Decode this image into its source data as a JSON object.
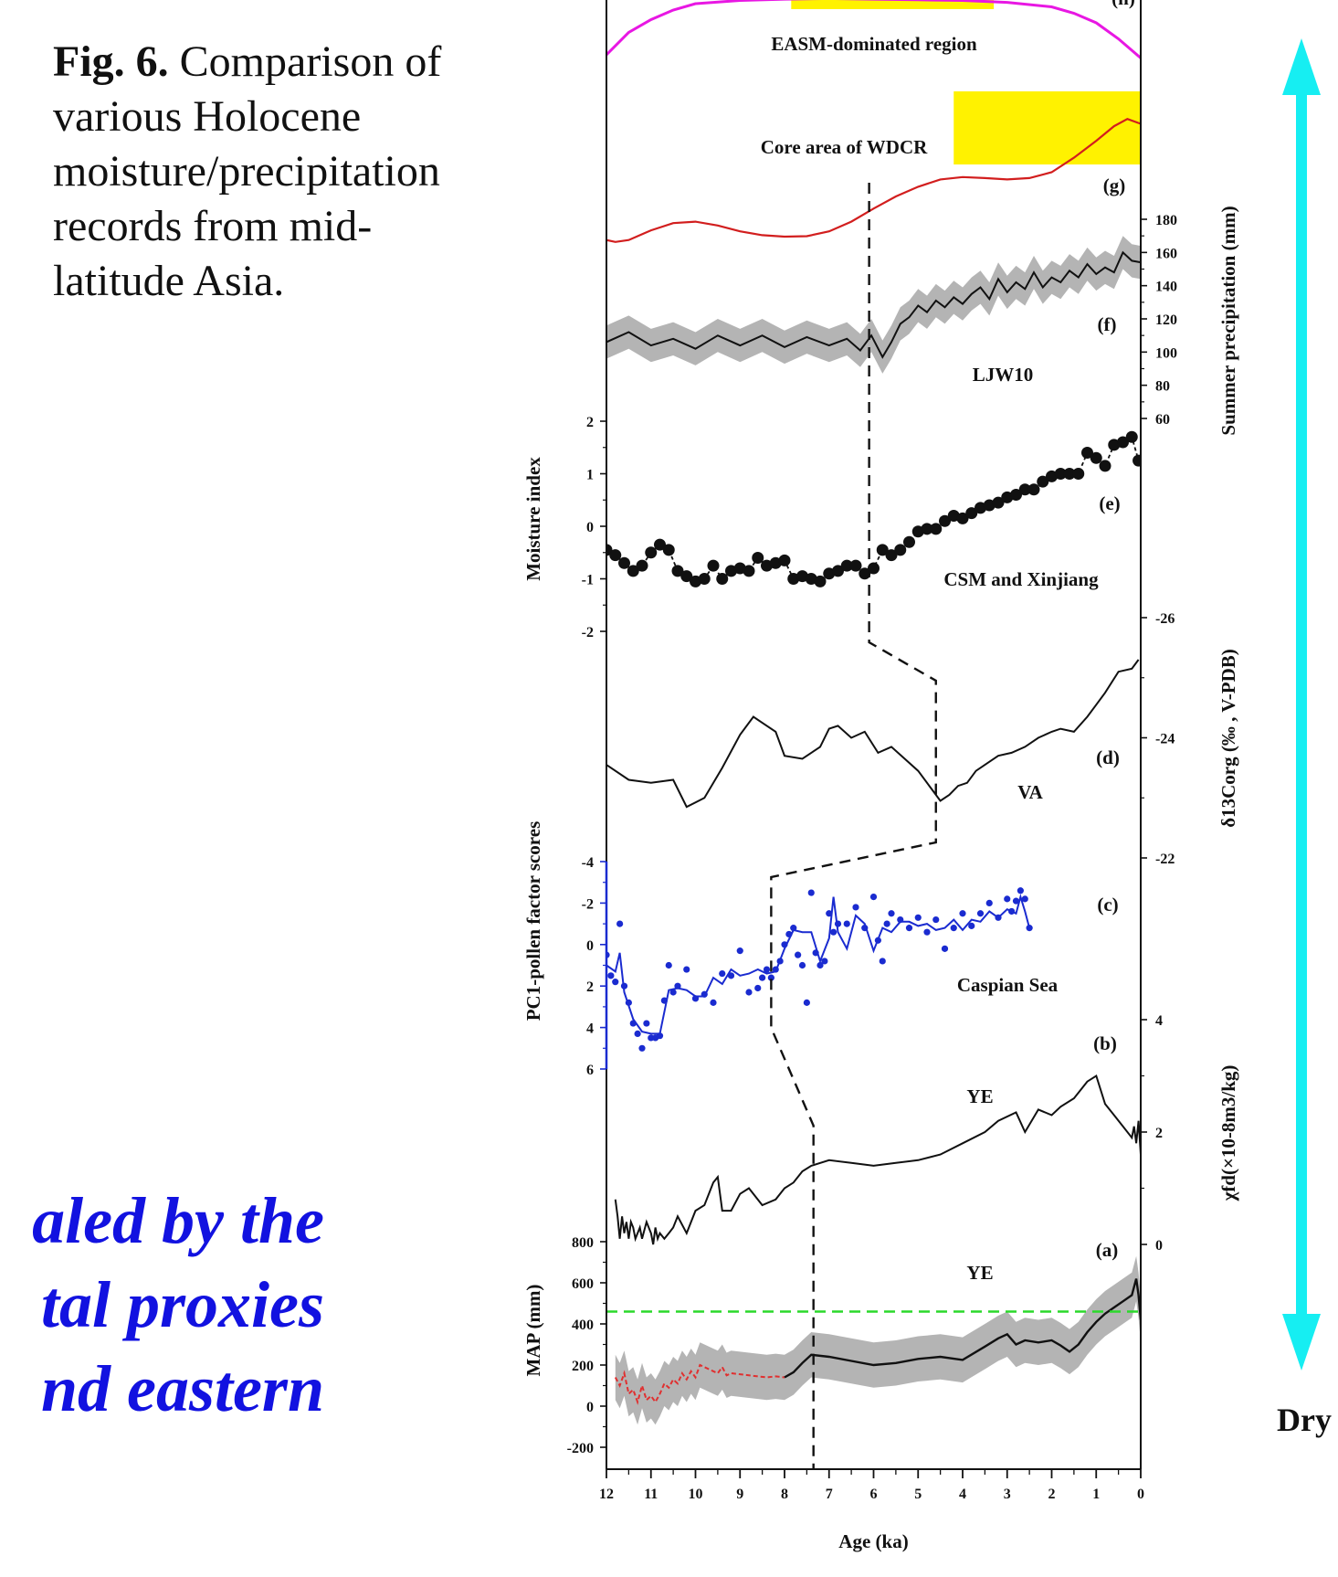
{
  "caption": {
    "bold": "Fig. 6.",
    "text": " Comparison of various Holocene moisture/precipitation records from mid-latitude Asia."
  },
  "side_text": [
    "aled by the",
    "tal proxies",
    "nd eastern"
  ],
  "side_label_dry": "Dry",
  "colors": {
    "accent_arrow": "#16eef2",
    "easm": "#e817e3",
    "wdcr": "#d21e1e",
    "caspian": "#1a2bd0",
    "yellow_box": "#fff200",
    "threshold_green": "#2bd92b",
    "red_dashed": "#e03030",
    "shade": "#b4b4b4"
  },
  "chart_data": [
    {
      "panel": "(h)",
      "type": "line",
      "label": "EASM-dominated region",
      "color": "#e817e3",
      "x": [
        12,
        11.5,
        11,
        10.5,
        10,
        9,
        8,
        7,
        6,
        5,
        4,
        3,
        2,
        1.5,
        1,
        0.5,
        0
      ],
      "y": [
        0.2,
        0.55,
        0.75,
        0.9,
        1.0,
        1.05,
        1.07,
        1.08,
        1.07,
        1.06,
        1.05,
        1.02,
        0.95,
        0.85,
        0.7,
        0.45,
        0.15
      ]
    },
    {
      "panel": "(g)",
      "type": "line",
      "label": "Core area of WDCR",
      "color": "#d21e1e",
      "x": [
        12,
        11.8,
        11.5,
        11,
        10.5,
        10,
        9.5,
        9,
        8.5,
        8,
        7.5,
        7,
        6.5,
        6,
        5.5,
        5,
        4.5,
        4,
        3.5,
        3,
        2.5,
        2,
        1.5,
        1,
        0.6,
        0.3,
        0
      ],
      "y": [
        0.1,
        0.06,
        0.1,
        0.3,
        0.45,
        0.48,
        0.4,
        0.28,
        0.2,
        0.17,
        0.18,
        0.28,
        0.48,
        0.75,
        1.0,
        1.2,
        1.35,
        1.4,
        1.38,
        1.35,
        1.38,
        1.5,
        1.8,
        2.15,
        2.45,
        2.6,
        2.5
      ]
    },
    {
      "panel": "(f)",
      "type": "area",
      "label": "LJW10",
      "ylabel": "Summer precipitation (mm)",
      "yticks": [
        60,
        80,
        100,
        120,
        140,
        160,
        180
      ],
      "x": [
        12,
        11.5,
        11,
        10.5,
        10,
        9.5,
        9,
        8.5,
        8,
        7.5,
        7,
        6.6,
        6.3,
        6.05,
        5.8,
        5.6,
        5.4,
        5.2,
        5,
        4.8,
        4.6,
        4.4,
        4.2,
        4,
        3.8,
        3.6,
        3.4,
        3.2,
        3,
        2.8,
        2.6,
        2.4,
        2.2,
        2,
        1.8,
        1.6,
        1.4,
        1.2,
        1,
        0.8,
        0.6,
        0.4,
        0.2,
        0
      ],
      "y": [
        106,
        112,
        104,
        108,
        102,
        110,
        104,
        110,
        103,
        109,
        104,
        108,
        101,
        110,
        97,
        106,
        117,
        121,
        128,
        124,
        131,
        127,
        133,
        129,
        135,
        139,
        132,
        144,
        136,
        142,
        138,
        148,
        139,
        145,
        142,
        149,
        145,
        153,
        147,
        151,
        148,
        160,
        155,
        154
      ],
      "band": 10
    },
    {
      "panel": "(e)",
      "type": "scatter",
      "label": "CSM and Xinjiang",
      "ylabel": "Moisture index",
      "yticks": [
        -2,
        -1,
        0,
        1,
        2
      ],
      "x": [
        12,
        11.8,
        11.6,
        11.4,
        11.2,
        11.0,
        10.8,
        10.6,
        10.4,
        10.2,
        10.0,
        9.8,
        9.6,
        9.4,
        9.2,
        9.0,
        8.8,
        8.6,
        8.4,
        8.2,
        8.0,
        7.8,
        7.6,
        7.4,
        7.2,
        7.0,
        6.8,
        6.6,
        6.4,
        6.2,
        6.0,
        5.8,
        5.6,
        5.4,
        5.2,
        5.0,
        4.8,
        4.6,
        4.4,
        4.2,
        4.0,
        3.8,
        3.6,
        3.4,
        3.2,
        3.0,
        2.8,
        2.6,
        2.4,
        2.2,
        2.0,
        1.8,
        1.6,
        1.4,
        1.2,
        1.0,
        0.8,
        0.6,
        0.4,
        0.2,
        0.05
      ],
      "y": [
        -0.45,
        -0.55,
        -0.7,
        -0.85,
        -0.75,
        -0.5,
        -0.35,
        -0.45,
        -0.85,
        -0.95,
        -1.05,
        -1.0,
        -0.75,
        -1.0,
        -0.85,
        -0.8,
        -0.85,
        -0.6,
        -0.75,
        -0.7,
        -0.65,
        -1.0,
        -0.95,
        -1.0,
        -1.05,
        -0.9,
        -0.85,
        -0.75,
        -0.75,
        -0.9,
        -0.8,
        -0.45,
        -0.55,
        -0.45,
        -0.3,
        -0.1,
        -0.05,
        -0.05,
        0.1,
        0.2,
        0.15,
        0.25,
        0.35,
        0.4,
        0.45,
        0.55,
        0.6,
        0.7,
        0.7,
        0.85,
        0.95,
        1.0,
        1.0,
        1.0,
        1.4,
        1.3,
        1.15,
        1.55,
        1.6,
        1.7,
        1.25
      ]
    },
    {
      "panel": "(d)",
      "type": "line",
      "label": "VA",
      "ylabel": "δ13Corg (‰ , V-PDB)",
      "yticks": [
        -26,
        -24,
        -22
      ],
      "x": [
        12,
        11.5,
        11,
        10.5,
        10.2,
        9.8,
        9.4,
        9,
        8.7,
        8.5,
        8.2,
        8,
        7.6,
        7.2,
        7,
        6.8,
        6.5,
        6.2,
        5.9,
        5.6,
        5.3,
        5.0,
        4.7,
        4.5,
        4.3,
        4.1,
        3.9,
        3.7,
        3.5,
        3.2,
        2.9,
        2.6,
        2.3,
        2.0,
        1.8,
        1.5,
        1.2,
        1.0,
        0.8,
        0.5,
        0.2,
        0.05
      ],
      "y": [
        -23.55,
        -23.3,
        -23.25,
        -23.3,
        -22.85,
        -23.0,
        -23.5,
        -24.05,
        -24.35,
        -24.25,
        -24.1,
        -23.7,
        -23.65,
        -23.85,
        -24.15,
        -24.2,
        -24.0,
        -24.1,
        -23.75,
        -23.85,
        -23.65,
        -23.45,
        -23.15,
        -22.95,
        -23.05,
        -23.2,
        -23.25,
        -23.45,
        -23.55,
        -23.7,
        -23.75,
        -23.85,
        -24.0,
        -24.1,
        -24.15,
        -24.1,
        -24.35,
        -24.55,
        -24.75,
        -25.1,
        -25.15,
        -25.3
      ]
    },
    {
      "panel": "(c)",
      "type": "scatter",
      "label": "Caspian Sea",
      "ylabel": "PC1-pollen factor scores",
      "yticks": [
        -4,
        -2,
        0,
        2,
        4,
        6
      ],
      "points_x": [
        12,
        11.9,
        11.8,
        11.7,
        11.6,
        11.5,
        11.4,
        11.3,
        11.2,
        11.1,
        11.0,
        10.9,
        10.8,
        10.7,
        10.6,
        10.5,
        10.4,
        10.2,
        10.0,
        9.8,
        9.6,
        9.4,
        9.2,
        9.0,
        8.8,
        8.6,
        8.5,
        8.4,
        8.3,
        8.2,
        8.1,
        8.0,
        7.9,
        7.8,
        7.7,
        7.6,
        7.5,
        7.4,
        7.3,
        7.2,
        7.1,
        7.0,
        6.9,
        6.8,
        6.6,
        6.4,
        6.2,
        6.0,
        5.9,
        5.8,
        5.7,
        5.6,
        5.4,
        5.2,
        5.0,
        4.8,
        4.6,
        4.4,
        4.2,
        4.0,
        3.8,
        3.6,
        3.4,
        3.2,
        3.0,
        2.9,
        2.8,
        2.7,
        2.6,
        2.5
      ],
      "points_y": [
        0.5,
        1.5,
        1.8,
        -1.0,
        2.0,
        2.8,
        3.8,
        4.3,
        5.0,
        3.8,
        4.5,
        4.5,
        4.4,
        2.7,
        1.0,
        2.3,
        2.0,
        1.2,
        2.6,
        2.4,
        2.8,
        1.4,
        1.5,
        0.3,
        2.3,
        2.1,
        1.6,
        1.2,
        1.6,
        1.2,
        0.8,
        0.0,
        -0.5,
        -0.8,
        0.5,
        1.0,
        2.8,
        -2.5,
        0.4,
        1.0,
        0.8,
        -1.5,
        -0.6,
        -1.0,
        -1.0,
        -1.8,
        -0.8,
        -2.3,
        -0.2,
        0.8,
        -1.0,
        -1.5,
        -1.2,
        -0.8,
        -1.3,
        -0.6,
        -1.2,
        0.2,
        -0.8,
        -1.5,
        -0.9,
        -1.5,
        -2.0,
        -1.3,
        -2.2,
        -1.6,
        -2.1,
        -2.6,
        -2.2,
        -0.8
      ],
      "line_x": [
        12,
        11.8,
        11.7,
        11.6,
        11.4,
        11.2,
        11.0,
        10.8,
        10.6,
        10.4,
        10.2,
        10.0,
        9.8,
        9.6,
        9.4,
        9.2,
        9.0,
        8.8,
        8.6,
        8.4,
        8.2,
        8.0,
        7.8,
        7.6,
        7.4,
        7.2,
        7.0,
        6.9,
        6.8,
        6.6,
        6.4,
        6.2,
        6.0,
        5.8,
        5.6,
        5.4,
        5.2,
        5.0,
        4.8,
        4.6,
        4.4,
        4.2,
        4.0,
        3.8,
        3.6,
        3.4,
        3.2,
        3.0,
        2.8,
        2.7,
        2.6,
        2.5
      ],
      "line_y": [
        1.0,
        1.3,
        0.4,
        2.3,
        3.6,
        4.2,
        4.3,
        4.3,
        2.2,
        2.1,
        2.2,
        2.5,
        2.5,
        1.6,
        1.9,
        1.2,
        1.5,
        1.4,
        1.2,
        1.4,
        1.3,
        0.2,
        -0.7,
        -0.6,
        -0.6,
        0.8,
        -0.3,
        -2.3,
        -0.6,
        0.2,
        -1.4,
        -1.0,
        0.3,
        -0.8,
        -0.6,
        -1.1,
        -1.1,
        -0.9,
        -1.0,
        -0.7,
        -0.8,
        -1.2,
        -0.7,
        -1.2,
        -1.1,
        -1.6,
        -1.3,
        -1.7,
        -1.5,
        -2.3,
        -1.6,
        -0.8
      ]
    },
    {
      "panel": "(b)",
      "type": "line",
      "label": "YE",
      "ylabel": "χfd(×10-8m3/kg)",
      "yticks": [
        0,
        2,
        4
      ],
      "x": [
        11.8,
        11.75,
        11.7,
        11.65,
        11.6,
        11.55,
        11.5,
        11.45,
        11.4,
        11.35,
        11.3,
        11.25,
        11.2,
        11.1,
        11.0,
        10.95,
        10.9,
        10.85,
        10.8,
        10.7,
        10.6,
        10.5,
        10.4,
        10.2,
        10.0,
        9.8,
        9.6,
        9.5,
        9.4,
        9.2,
        9.0,
        8.8,
        8.5,
        8.2,
        8.0,
        7.8,
        7.6,
        7.4,
        7.0,
        6.5,
        6.0,
        5.5,
        5.0,
        4.5,
        4.0,
        3.5,
        3.2,
        2.8,
        2.6,
        2.3,
        2.0,
        1.8,
        1.5,
        1.2,
        1.0,
        0.8,
        0.6,
        0.4,
        0.2,
        0.15,
        0.1,
        0.05,
        0
      ],
      "y": [
        0.8,
        0.5,
        0.1,
        0.5,
        0.2,
        0.4,
        0.1,
        0.4,
        0.3,
        0.1,
        0.2,
        0.3,
        0.1,
        0.4,
        0.2,
        0.0,
        0.3,
        0.1,
        0.2,
        0.1,
        0.2,
        0.3,
        0.5,
        0.2,
        0.6,
        0.7,
        1.1,
        1.2,
        0.6,
        0.6,
        0.9,
        1.0,
        0.7,
        0.8,
        1.0,
        1.1,
        1.3,
        1.4,
        1.5,
        1.45,
        1.4,
        1.45,
        1.5,
        1.6,
        1.8,
        2.0,
        2.2,
        2.35,
        2.0,
        2.4,
        2.3,
        2.45,
        2.6,
        2.9,
        3.0,
        2.5,
        2.3,
        2.1,
        1.9,
        2.1,
        1.8,
        2.2,
        1.6
      ]
    },
    {
      "panel": "(a)",
      "type": "area",
      "label": "YE",
      "xlabel": "Age (ka)",
      "ylabel": "MAP (mm)",
      "yticks": [
        -200,
        0,
        200,
        400,
        600,
        800
      ],
      "xticks": [
        12,
        11,
        10,
        9,
        8,
        7,
        6,
        5,
        4,
        3,
        2,
        1,
        0
      ],
      "xlim": [
        12,
        0
      ],
      "threshold": 460,
      "x": [
        8.0,
        7.8,
        7.6,
        7.4,
        7.0,
        6.5,
        6.0,
        5.5,
        5.0,
        4.5,
        4.0,
        3.5,
        3.2,
        3.0,
        2.8,
        2.6,
        2.3,
        2.0,
        1.8,
        1.6,
        1.4,
        1.2,
        1.0,
        0.8,
        0.6,
        0.4,
        0.2,
        0.1,
        0.05,
        0
      ],
      "y": [
        140,
        165,
        210,
        250,
        240,
        220,
        200,
        210,
        230,
        240,
        225,
        290,
        330,
        350,
        300,
        320,
        310,
        320,
        295,
        265,
        300,
        360,
        410,
        450,
        480,
        510,
        540,
        620,
        540,
        420
      ],
      "band": 110,
      "red_x": [
        11.8,
        11.7,
        11.6,
        11.5,
        11.4,
        11.3,
        11.2,
        11.1,
        11.0,
        10.9,
        10.8,
        10.7,
        10.6,
        10.5,
        10.4,
        10.3,
        10.2,
        10.1,
        10.0,
        9.9,
        9.8,
        9.7,
        9.6,
        9.5,
        9.4,
        9.3,
        9.2,
        9.0,
        8.8,
        8.6,
        8.4,
        8.2,
        8.0
      ],
      "red_y": [
        140,
        100,
        160,
        60,
        80,
        20,
        100,
        30,
        50,
        20,
        60,
        110,
        90,
        130,
        110,
        160,
        130,
        170,
        140,
        200,
        190,
        180,
        170,
        160,
        190,
        150,
        160,
        155,
        150,
        145,
        140,
        145,
        140
      ]
    }
  ]
}
